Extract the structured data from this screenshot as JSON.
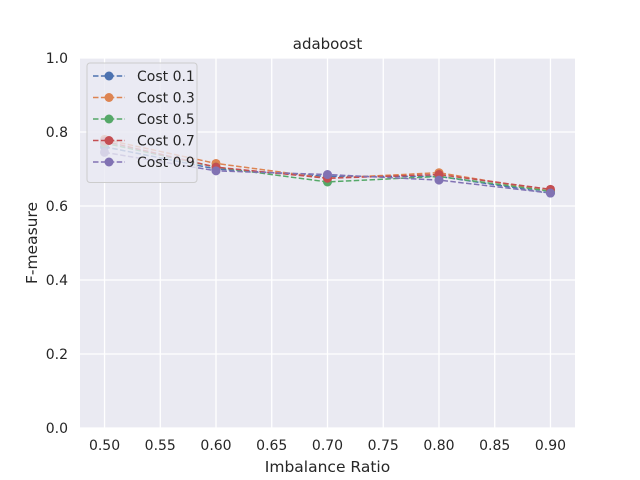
{
  "chart_data": {
    "type": "line",
    "title": "adaboost",
    "xlabel": "Imbalance Ratio",
    "ylabel": "F-measure",
    "x": [
      0.5,
      0.6,
      0.7,
      0.8,
      0.9
    ],
    "xlim": [
      0.478,
      0.922
    ],
    "ylim": [
      0.0,
      1.0
    ],
    "xticks": [
      0.5,
      0.55,
      0.6,
      0.65,
      0.7,
      0.75,
      0.8,
      0.85,
      0.9
    ],
    "xtick_labels": [
      "0.50",
      "0.55",
      "0.60",
      "0.65",
      "0.70",
      "0.75",
      "0.80",
      "0.85",
      "0.90"
    ],
    "yticks": [
      0.0,
      0.2,
      0.4,
      0.6,
      0.8,
      1.0
    ],
    "ytick_labels": [
      "0.0",
      "0.2",
      "0.4",
      "0.6",
      "0.8",
      "1.0"
    ],
    "grid": true,
    "legend_position": "upper-left",
    "series": [
      {
        "name": "Cost 0.1",
        "color": "#4c72b0",
        "values": [
          0.76,
          0.7,
          0.68,
          0.68,
          0.635
        ]
      },
      {
        "name": "Cost 0.3",
        "color": "#dd8452",
        "values": [
          0.78,
          0.715,
          0.675,
          0.69,
          0.64
        ]
      },
      {
        "name": "Cost 0.5",
        "color": "#55a868",
        "values": [
          0.77,
          0.705,
          0.665,
          0.68,
          0.64
        ]
      },
      {
        "name": "Cost 0.7",
        "color": "#c44e52",
        "values": [
          0.775,
          0.705,
          0.675,
          0.685,
          0.645
        ]
      },
      {
        "name": "Cost 0.9",
        "color": "#8172b3",
        "values": [
          0.745,
          0.695,
          0.685,
          0.67,
          0.635
        ]
      }
    ]
  }
}
